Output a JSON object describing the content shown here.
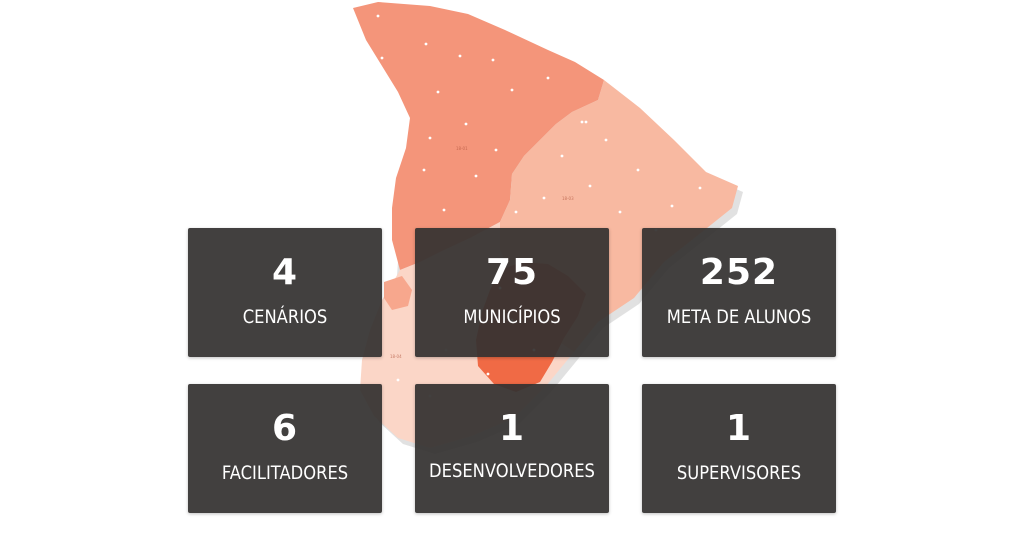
{
  "map": {
    "region_labels": [
      "18-01",
      "18-03",
      "18-04"
    ],
    "colors": {
      "north": "#f4957a",
      "east": "#f8b9a1",
      "south": "#fbd6c7",
      "coastal": "#f06a45",
      "shadow": "#d9d9d9"
    }
  },
  "stats": [
    {
      "value": "4",
      "label": "CENÁRIOS"
    },
    {
      "value": "75",
      "label": "MUNICÍPIOS"
    },
    {
      "value": "252",
      "label": "META DE ALUNOS"
    },
    {
      "value": "6",
      "label": "FACILITADORES"
    },
    {
      "value": "1",
      "label": "DESENVOLVEDORES"
    },
    {
      "value": "1",
      "label": "SUPERVISORES"
    }
  ],
  "colors": {
    "tile_background": "#343130",
    "tile_text": "#ffffff",
    "page_background": "#ffffff"
  }
}
